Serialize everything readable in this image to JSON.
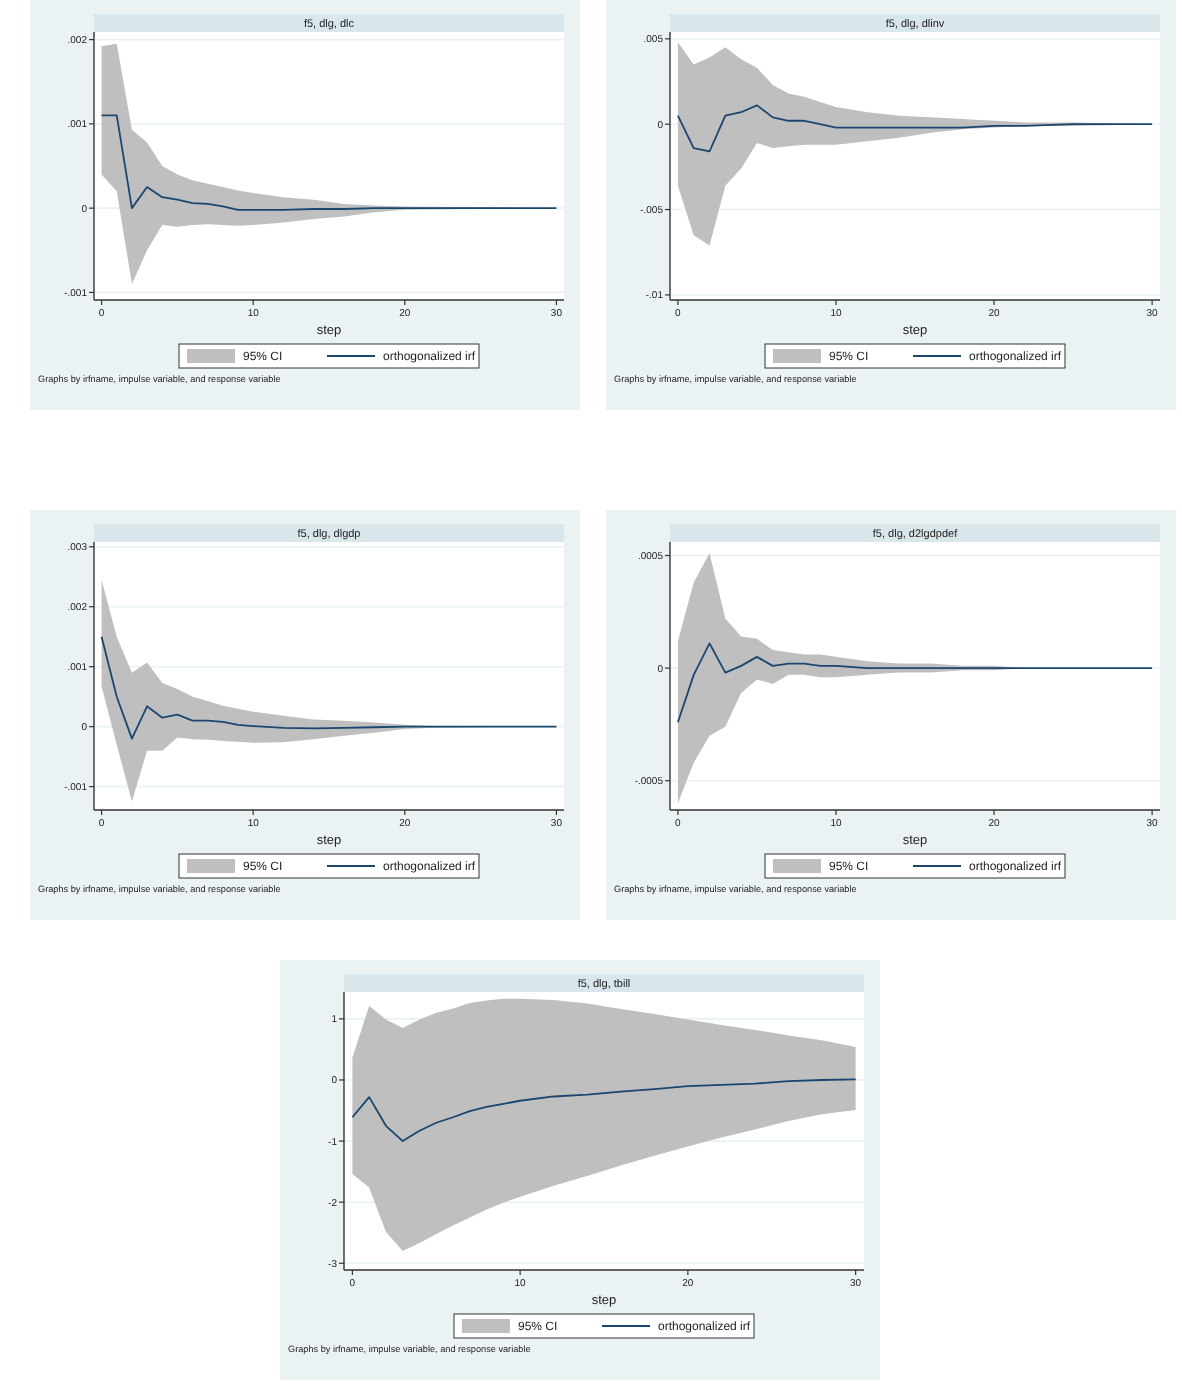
{
  "chart_data": [
    {
      "type": "line",
      "title": "f5, dlg, dlc",
      "xlabel": "step",
      "xlim": [
        -0.5,
        30.5
      ],
      "xticks": [
        0,
        10,
        20,
        30
      ],
      "ylim": [
        -0.00109,
        0.00209
      ],
      "yticks": [
        {
          "value": -0.001,
          "label": "-.001"
        },
        0,
        {
          "value": 0.001,
          "label": ".001"
        },
        {
          "value": 0.002,
          "label": ".002"
        }
      ],
      "grid": "y",
      "legend": "bottom",
      "annotations": [
        "95% CI",
        "Graphs by irfname, impulse variable, and response variable"
      ],
      "x": [
        0,
        1,
        2,
        3,
        4,
        5,
        6,
        7,
        8,
        9,
        10,
        12,
        14,
        16,
        18,
        20,
        25,
        30
      ],
      "series": [
        {
          "name": "orthogonalized irf",
          "color": "#1a476f",
          "values": [
            0.0011,
            0.0011,
            0,
            0.00025,
            0.00013,
            0.0001,
            6e-05,
            5e-05,
            2e-05,
            -2e-05,
            -2e-05,
            -2e-05,
            -1e-05,
            -1e-05,
            0,
            0,
            0,
            0
          ],
          "upper": [
            0.00192,
            0.00195,
            0.00093,
            0.00078,
            0.0005,
            0.0004,
            0.00033,
            0.00029,
            0.00025,
            0.00021,
            0.00018,
            0.00013,
            0.0001,
            5e-05,
            3e-05,
            2e-05,
            1e-05,
            0
          ],
          "lower": [
            0.0004,
            0.0002,
            -0.0009,
            -0.0005,
            -0.0002,
            -0.00022,
            -0.0002,
            -0.00019,
            -0.0002,
            -0.00021,
            -0.0002,
            -0.00017,
            -0.00013,
            -0.0001,
            -5e-05,
            -2e-05,
            -1e-05,
            0
          ]
        }
      ]
    },
    {
      "type": "line",
      "title": "f5, dlg, dlinv",
      "xlabel": "step",
      "xlim": [
        -0.5,
        30.5
      ],
      "xticks": [
        0,
        10,
        20,
        30
      ],
      "ylim": [
        -0.0103,
        0.0054
      ],
      "yticks": [
        {
          "value": -0.01,
          "label": "-.01"
        },
        {
          "value": -0.005,
          "label": "-.005"
        },
        0,
        {
          "value": 0.005,
          "label": ".005"
        }
      ],
      "grid": "y",
      "legend": "bottom",
      "annotations": [
        "95% CI",
        "Graphs by irfname, impulse variable, and response variable"
      ],
      "x": [
        0,
        1,
        2,
        3,
        4,
        5,
        6,
        7,
        8,
        9,
        10,
        12,
        14,
        16,
        18,
        20,
        22,
        25,
        30
      ],
      "series": [
        {
          "name": "orthogonalized irf",
          "color": "#1a476f",
          "values": [
            0.0005,
            -0.0014,
            -0.0016,
            0.0005,
            0.0007,
            0.0011,
            0.0004,
            0.0002,
            0.0002,
            0,
            -0.0002,
            -0.0002,
            -0.0002,
            -0.0002,
            -0.0002,
            -0.0001,
            -0.0001,
            0,
            0
          ],
          "upper": [
            0.0048,
            0.0035,
            0.0039,
            0.0045,
            0.0038,
            0.0033,
            0.0023,
            0.0018,
            0.0016,
            0.0013,
            0.001,
            0.0007,
            0.0005,
            0.0004,
            0.0003,
            0.0002,
            0.0001,
            0.0001,
            0
          ],
          "lower": [
            -0.0036,
            -0.0065,
            -0.0071,
            -0.0036,
            -0.0026,
            -0.0011,
            -0.0014,
            -0.0013,
            -0.0012,
            -0.0012,
            -0.0012,
            -0.001,
            -0.0008,
            -0.0005,
            -0.0003,
            -0.0002,
            -0.0001,
            -0.0001,
            0
          ]
        }
      ]
    },
    {
      "type": "line",
      "title": "f5, dlg, dlgdp",
      "xlabel": "step",
      "xlim": [
        -0.5,
        30.5
      ],
      "xticks": [
        0,
        10,
        20,
        30
      ],
      "ylim": [
        -0.00139,
        0.00308
      ],
      "yticks": [
        {
          "value": -0.001,
          "label": "-.001"
        },
        0,
        {
          "value": 0.001,
          "label": ".001"
        },
        {
          "value": 0.002,
          "label": ".002"
        },
        {
          "value": 0.003,
          "label": ".003"
        }
      ],
      "grid": "y",
      "legend": "bottom",
      "annotations": [
        "95% CI",
        "Graphs by irfname, impulse variable, and response variable"
      ],
      "x": [
        0,
        1,
        2,
        3,
        4,
        5,
        6,
        7,
        8,
        9,
        10,
        12,
        14,
        16,
        18,
        20,
        22,
        25,
        30
      ],
      "series": [
        {
          "name": "orthogonalized irf",
          "color": "#1a476f",
          "values": [
            0.0015,
            0.0005,
            -0.0002,
            0.00034,
            0.00015,
            0.0002,
            0.0001,
            0.0001,
            8e-05,
            3e-05,
            1e-05,
            -2e-05,
            -3e-05,
            -2e-05,
            -1e-05,
            0,
            0,
            0,
            0
          ],
          "upper": [
            0.00245,
            0.0015,
            0.0009,
            0.00107,
            0.00073,
            0.00063,
            0.0005,
            0.00043,
            0.00035,
            0.0003,
            0.00025,
            0.00018,
            0.00012,
            0.0001,
            7e-05,
            3e-05,
            1e-05,
            0,
            0
          ],
          "lower": [
            0.00067,
            -0.0003,
            -0.00125,
            -0.0004,
            -0.0004,
            -0.00018,
            -0.00021,
            -0.00022,
            -0.00024,
            -0.00025,
            -0.00027,
            -0.00026,
            -0.00021,
            -0.00015,
            -0.0001,
            -4e-05,
            -2e-05,
            -1e-05,
            0
          ]
        }
      ]
    },
    {
      "type": "line",
      "title": "f5, dlg, d2lgdpdef",
      "xlabel": "step",
      "xlim": [
        -0.5,
        30.5
      ],
      "xticks": [
        0,
        10,
        20,
        30
      ],
      "ylim": [
        -0.00063,
        0.00056
      ],
      "yticks": [
        {
          "value": -0.0005,
          "label": "-.0005"
        },
        0,
        {
          "value": 0.0005,
          "label": ".0005"
        }
      ],
      "grid": "y",
      "legend": "bottom",
      "annotations": [
        "95% CI",
        "Graphs by irfname, impulse variable, and response variable"
      ],
      "x": [
        0,
        1,
        2,
        3,
        4,
        5,
        6,
        7,
        8,
        9,
        10,
        12,
        14,
        16,
        18,
        20,
        22,
        25,
        30
      ],
      "series": [
        {
          "name": "orthogonalized irf",
          "color": "#1a476f",
          "values": [
            -0.00024,
            -3e-05,
            0.00011,
            -2e-05,
            1e-05,
            5e-05,
            1e-05,
            2e-05,
            2e-05,
            1e-05,
            1e-05,
            0,
            0,
            0,
            0,
            0,
            0,
            0,
            0
          ],
          "upper": [
            0.00012,
            0.00038,
            0.00051,
            0.00022,
            0.00014,
            0.00013,
            8e-05,
            7e-05,
            6e-05,
            6e-05,
            5e-05,
            3e-05,
            2e-05,
            2e-05,
            1e-05,
            1e-05,
            0,
            0,
            0
          ],
          "lower": [
            -0.0006,
            -0.00042,
            -0.0003,
            -0.00026,
            -0.00011,
            -5e-05,
            -7e-05,
            -3e-05,
            -3e-05,
            -4e-05,
            -4e-05,
            -3e-05,
            -2e-05,
            -2e-05,
            -1e-05,
            -1e-05,
            0,
            0,
            0
          ]
        }
      ]
    },
    {
      "type": "line",
      "title": "f5, dlg, tbill",
      "xlabel": "step",
      "xlim": [
        -0.5,
        30.5
      ],
      "xticks": [
        0,
        10,
        20,
        30
      ],
      "ylim": [
        -3.11,
        1.44
      ],
      "yticks": [
        -3,
        -2,
        -1,
        0,
        1
      ],
      "grid": "y",
      "legend": "bottom",
      "annotations": [
        "95% CI",
        "Graphs by irfname, impulse variable, and response variable"
      ],
      "x": [
        0,
        1,
        2,
        3,
        4,
        5,
        6,
        7,
        8,
        9,
        10,
        12,
        14,
        16,
        18,
        20,
        22,
        24,
        26,
        28,
        30
      ],
      "series": [
        {
          "name": "orthogonalized irf",
          "color": "#1a476f",
          "values": [
            -0.61,
            -0.28,
            -0.75,
            -1,
            -0.83,
            -0.7,
            -0.61,
            -0.51,
            -0.44,
            -0.39,
            -0.34,
            -0.27,
            -0.24,
            -0.19,
            -0.15,
            -0.1,
            -0.08,
            -0.06,
            -0.02,
            0,
            0.01
          ],
          "upper": [
            0.37,
            1.21,
            0.99,
            0.85,
            0.99,
            1.1,
            1.17,
            1.26,
            1.3,
            1.33,
            1.33,
            1.31,
            1.25,
            1.16,
            1.08,
            0.99,
            0.9,
            0.82,
            0.73,
            0.65,
            0.54
          ],
          "lower": [
            -1.54,
            -1.76,
            -2.49,
            -2.8,
            -2.67,
            -2.52,
            -2.38,
            -2.25,
            -2.12,
            -2.01,
            -1.91,
            -1.73,
            -1.57,
            -1.4,
            -1.24,
            -1.09,
            -0.94,
            -0.81,
            -0.67,
            -0.56,
            -0.49
          ]
        }
      ]
    }
  ]
}
